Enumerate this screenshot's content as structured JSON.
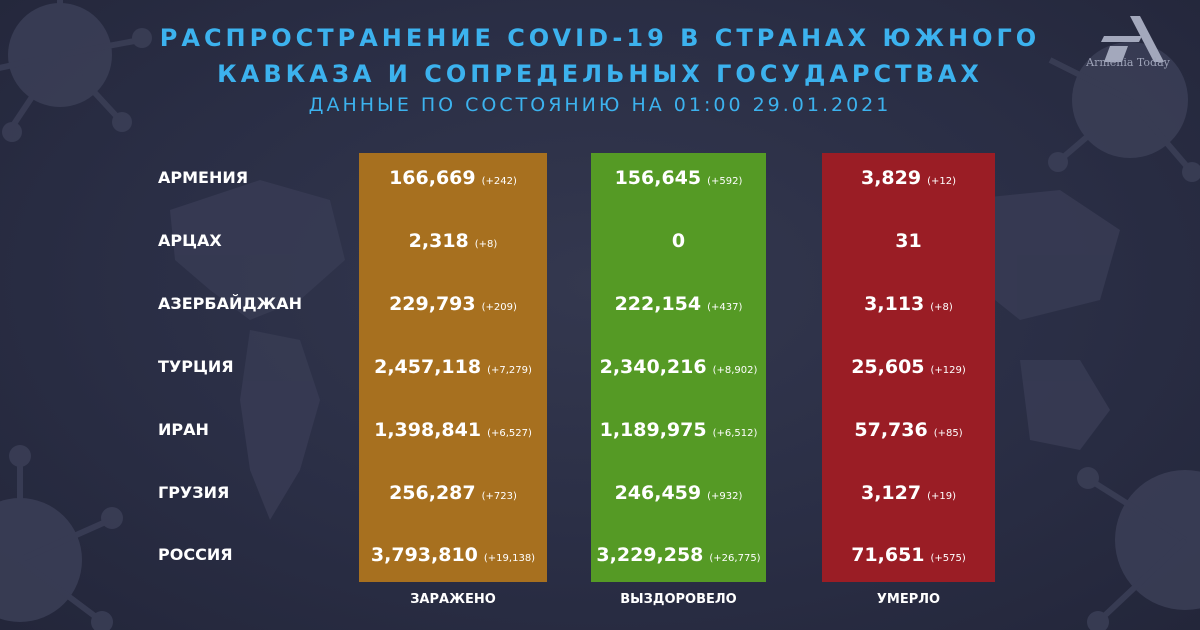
{
  "header": {
    "title_line1": "РАСПРОСТРАНЕНИЕ COVID-19 В СТРАНАХ ЮЖНОГО",
    "title_line2": "КАВКАЗА И СОПРЕДЕЛЬНЫХ ГОСУДАРСТВАХ",
    "subtitle": "ДАННЫЕ ПО СОСТОЯНИЮ НА 01:00  29.01.2021",
    "accent_color": "#3cb2ee"
  },
  "brand": {
    "name": "Armenia Today",
    "logo_icon": "armenia-today-logo-icon"
  },
  "columns": {
    "infected": {
      "label": "ЗАРАЖЕНО",
      "color": "#a7701f"
    },
    "recovered": {
      "label": "ВЫЗДОРОВЕЛО",
      "color": "#559a25"
    },
    "deaths": {
      "label": "УМЕРЛО",
      "color": "#9a1d25"
    }
  },
  "rows": [
    {
      "country": "АРМЕНИЯ",
      "infected": "166,669",
      "infected_delta": "(+242)",
      "recovered": "156,645",
      "recovered_delta": "(+592)",
      "deaths": "3,829",
      "deaths_delta": "(+12)"
    },
    {
      "country": "АРЦАХ",
      "infected": "2,318",
      "infected_delta": "(+8)",
      "recovered": "0",
      "recovered_delta": "",
      "deaths": "31",
      "deaths_delta": ""
    },
    {
      "country": "АЗЕРБАЙДЖАН",
      "infected": "229,793",
      "infected_delta": "(+209)",
      "recovered": "222,154",
      "recovered_delta": "(+437)",
      "deaths": "3,113",
      "deaths_delta": "(+8)"
    },
    {
      "country": "ТУРЦИЯ",
      "infected": "2,457,118",
      "infected_delta": "(+7,279)",
      "recovered": "2,340,216",
      "recovered_delta": "(+8,902)",
      "deaths": "25,605",
      "deaths_delta": "(+129)"
    },
    {
      "country": "ИРАН",
      "infected": "1,398,841",
      "infected_delta": "(+6,527)",
      "recovered": "1,189,975",
      "recovered_delta": "(+6,512)",
      "deaths": "57,736",
      "deaths_delta": "(+85)"
    },
    {
      "country": "ГРУЗИЯ",
      "infected": "256,287",
      "infected_delta": "(+723)",
      "recovered": "246,459",
      "recovered_delta": "(+932)",
      "deaths": "3,127",
      "deaths_delta": "(+19)"
    },
    {
      "country": "РОССИЯ",
      "infected": "3,793,810",
      "infected_delta": "(+19,138)",
      "recovered": "3,229,258",
      "recovered_delta": "(+26,775)",
      "deaths": "71,651",
      "deaths_delta": "(+575)"
    }
  ]
}
